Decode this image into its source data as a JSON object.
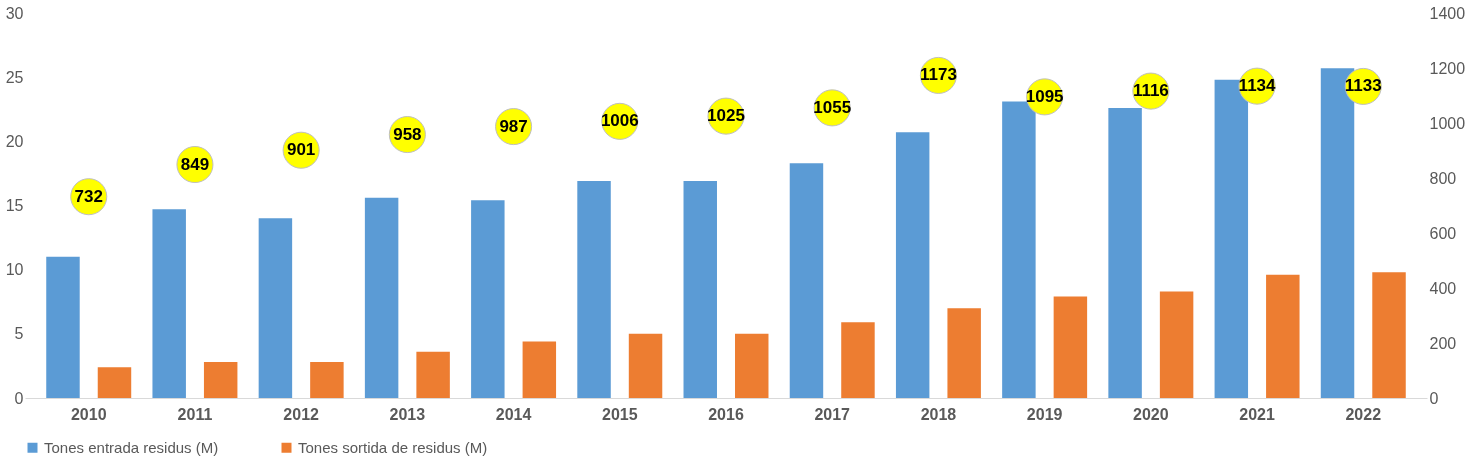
{
  "chart_data": {
    "type": "bar",
    "categories": [
      "2010",
      "2011",
      "2012",
      "2013",
      "2014",
      "2015",
      "2016",
      "2017",
      "2018",
      "2019",
      "2020",
      "2021",
      "2022"
    ],
    "series": [
      {
        "name": "Tones entrada residus (M)",
        "color": "#5b9bd5",
        "values": [
          11.0,
          14.7,
          14.0,
          15.6,
          15.4,
          16.9,
          16.9,
          18.3,
          20.7,
          23.1,
          22.6,
          24.8,
          25.7
        ]
      },
      {
        "name": "Tones sortida de residus (M)",
        "color": "#ed7d31",
        "values": [
          2.4,
          2.8,
          2.8,
          3.6,
          4.4,
          5.0,
          5.0,
          5.9,
          7.0,
          7.9,
          8.3,
          9.6,
          9.8
        ]
      },
      {
        "type": "scatter",
        "axis": "y2",
        "color": "#ffff00",
        "marker": "circle",
        "values": [
          732,
          849,
          901,
          958,
          987,
          1006,
          1025,
          1055,
          1173,
          1095,
          1116,
          1134,
          1133
        ],
        "value_labels": [
          "732",
          "849",
          "901",
          "958",
          "987",
          "1006",
          "1025",
          "1055",
          "1173",
          "1095",
          "1116",
          "1134",
          "1133"
        ]
      }
    ],
    "ylim": [
      0,
      30
    ],
    "yticks": [
      0,
      5,
      10,
      15,
      20,
      25,
      30
    ],
    "y2lim": [
      0,
      1400
    ],
    "y2ticks": [
      0,
      200,
      400,
      600,
      800,
      1000,
      1200,
      1400
    ],
    "grid": false,
    "legend": "bottom"
  }
}
